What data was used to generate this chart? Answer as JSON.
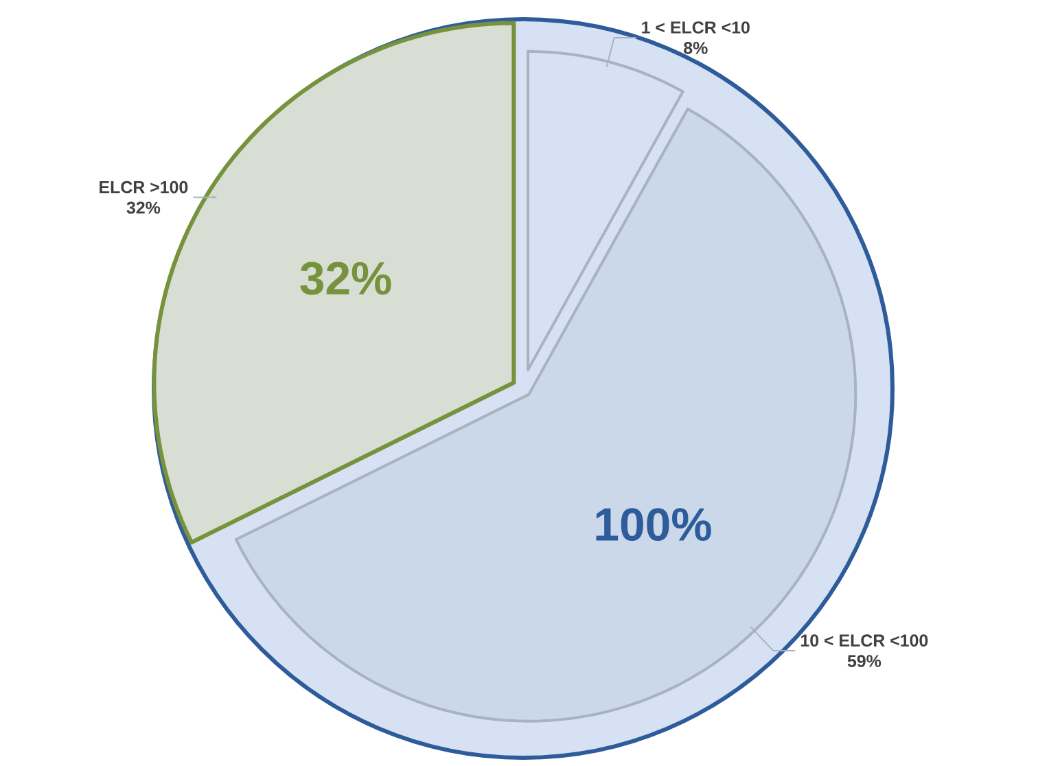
{
  "chart_data": {
    "type": "pie",
    "categories": [
      "1 < ELCR <10",
      "10 < ELCR <100",
      "ELCR >100"
    ],
    "values": [
      8,
      59,
      32
    ],
    "colors": [
      "#d6e2f3",
      "#cbd8ea",
      "#d8ded4"
    ],
    "value_labels": [
      "8%",
      "59%",
      "32%"
    ],
    "annotations": [
      {
        "text": "32%",
        "x": "ELCR >100"
      },
      {
        "text": "100%",
        "x": "10 < ELCR <100"
      }
    ]
  }
}
